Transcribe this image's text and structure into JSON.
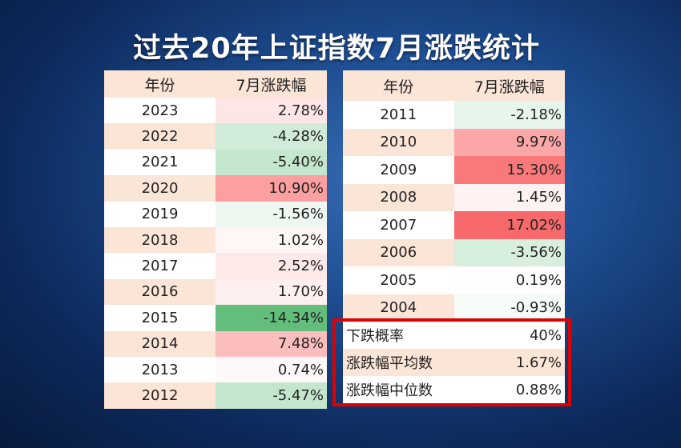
{
  "title": "过去20年上证指数7月涨跌统计",
  "left_table": {
    "header": [
      "年份",
      "7月涨跌幅"
    ],
    "rows": [
      [
        "2023",
        "2.78%"
      ],
      [
        "2022",
        "-4.28%"
      ],
      [
        "2021",
        "-5.40%"
      ],
      [
        "2020",
        "10.90%"
      ],
      [
        "2019",
        "-1.56%"
      ],
      [
        "2018",
        "1.02%"
      ],
      [
        "2017",
        "2.52%"
      ],
      [
        "2016",
        "1.70%"
      ],
      [
        "2015",
        "-14.34%"
      ],
      [
        "2014",
        "7.48%"
      ],
      [
        "2013",
        "0.74%"
      ],
      [
        "2012",
        "-5.47%"
      ]
    ]
  },
  "right_table": {
    "header": [
      "年份",
      "7月涨跌幅"
    ],
    "rows": [
      [
        "2011",
        "-2.18%"
      ],
      [
        "2010",
        "9.97%"
      ],
      [
        "2009",
        "15.30%"
      ],
      [
        "2008",
        "1.45%"
      ],
      [
        "2007",
        "17.02%"
      ],
      [
        "2006",
        "-3.56%"
      ],
      [
        "2005",
        "0.19%"
      ],
      [
        "2004",
        "-0.93%"
      ]
    ]
  },
  "summary": {
    "rows": [
      [
        "下跌概率",
        "40%"
      ],
      [
        "涨跌幅平均数",
        "1.67%"
      ],
      [
        "涨跌幅中位数",
        "0.88%"
      ]
    ]
  }
}
